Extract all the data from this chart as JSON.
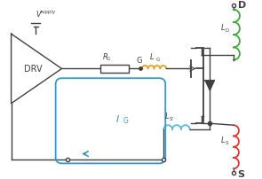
{
  "bg_color": "#ffffff",
  "colors": {
    "black": "#404040",
    "green": "#3aaa35",
    "red": "#e8312a",
    "orange": "#e8a020",
    "blue": "#3399cc",
    "cyan": "#55bbdd"
  },
  "labels": {
    "drv": "DRV",
    "vsupply": "V",
    "vsupply_sub": "supply",
    "rg": "R",
    "rg_sub": "G",
    "g_label": "G",
    "lg": "L",
    "lg_sub": "G",
    "ld": "L",
    "ld_sub": "D",
    "ls": "L",
    "ls_sub": "S",
    "ls_prime": "L",
    "ls_prime_sub": "S’",
    "ig": "I",
    "ig_sub": "G",
    "D": "D",
    "S": "S"
  }
}
